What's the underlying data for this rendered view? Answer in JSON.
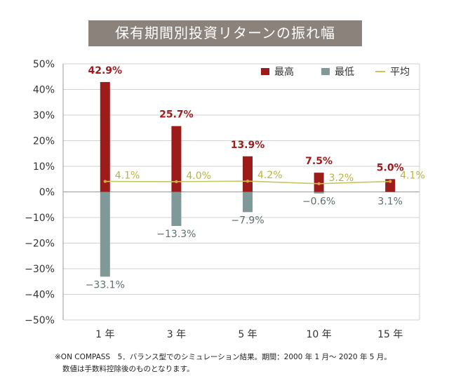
{
  "chart_data": {
    "type": "bar",
    "title": "保有期間別投資リターンの振れ幅",
    "categories": [
      "1 年",
      "3 年",
      "5 年",
      "10 年",
      "15 年"
    ],
    "series": [
      {
        "name": "最高",
        "values": [
          42.9,
          25.7,
          13.9,
          7.5,
          5.0
        ],
        "labels": [
          "42.9%",
          "25.7%",
          "13.9%",
          "7.5%",
          "5.0%"
        ],
        "color": "#9c1b1b"
      },
      {
        "name": "最低",
        "values": [
          -33.1,
          -13.3,
          -7.9,
          -0.6,
          3.1
        ],
        "labels": [
          "−33.1%",
          "−13.3%",
          "−7.9%",
          "−0.6%",
          "3.1%"
        ],
        "color": "#7f9898"
      },
      {
        "name": "平均",
        "type": "line",
        "values": [
          4.1,
          4.0,
          4.2,
          3.2,
          4.1
        ],
        "labels": [
          "4.1%",
          "4.0%",
          "4.2%",
          "3.2%",
          "4.1%"
        ],
        "color": "#c9c462"
      }
    ],
    "y_ticks": [
      "50%",
      "40%",
      "30%",
      "20%",
      "10%",
      "0%",
      "−10%",
      "−20%",
      "−30%",
      "−40%",
      "−50%"
    ],
    "ylim": [
      -50,
      50
    ],
    "grid": true,
    "legend": "top-right"
  },
  "footnote": {
    "line1": "※ON COMPASS　5．バランス型でのシミュレーション結果。期間：2000 年 1 月〜 2020 年 5 月。",
    "line2": "数値は手数料控除後のものとなります。"
  }
}
